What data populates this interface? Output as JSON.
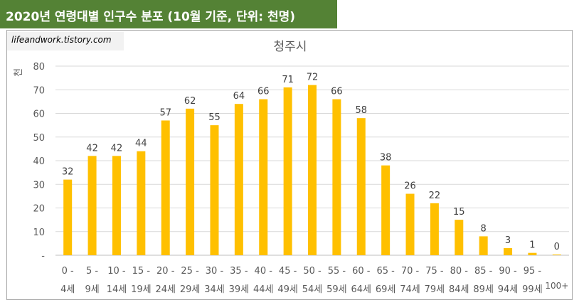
{
  "header": {
    "title": "2020년 연령대별 인구수 분포 (10월 기준, 단위: 천명)"
  },
  "watermark": {
    "text": "lifeandwork.tistory.com"
  },
  "colors": {
    "banner": "#548235",
    "bar": "#ffc000",
    "grid": "#d9d9d9",
    "text": "#595959"
  },
  "chart_data": {
    "type": "bar",
    "title": "청주시",
    "ylabel": "천",
    "ylim": [
      0,
      80
    ],
    "yticks": [
      "-",
      "10",
      "20",
      "30",
      "40",
      "50",
      "60",
      "70",
      "80"
    ],
    "categories": [
      [
        "0 -",
        "4세"
      ],
      [
        "5 -",
        "9세"
      ],
      [
        "10 -",
        "14세"
      ],
      [
        "15 -",
        "19세"
      ],
      [
        "20 -",
        "24세"
      ],
      [
        "25 -",
        "29세"
      ],
      [
        "30 -",
        "34세"
      ],
      [
        "35 -",
        "39세"
      ],
      [
        "40 -",
        "44세"
      ],
      [
        "45 -",
        "49세"
      ],
      [
        "50 -",
        "54세"
      ],
      [
        "55 -",
        "59세"
      ],
      [
        "60 -",
        "64세"
      ],
      [
        "65 -",
        "69세"
      ],
      [
        "70 -",
        "74세"
      ],
      [
        "75 -",
        "79세"
      ],
      [
        "80 -",
        "84세"
      ],
      [
        "85 -",
        "89세"
      ],
      [
        "90 -",
        "94세"
      ],
      [
        "95 -",
        "99세"
      ],
      [
        "",
        "100+"
      ]
    ],
    "values": [
      32,
      42,
      42,
      44,
      57,
      62,
      55,
      64,
      66,
      71,
      72,
      66,
      58,
      38,
      26,
      22,
      15,
      8,
      3,
      1,
      0
    ],
    "data_labels": [
      "32",
      "42",
      "42",
      "44",
      "57",
      "62",
      "55",
      "64",
      "66",
      "71",
      "72",
      "66",
      "58",
      "38",
      "26",
      "22",
      "15",
      "8",
      "3",
      "1",
      "0"
    ],
    "grid": true,
    "legend": "none"
  }
}
